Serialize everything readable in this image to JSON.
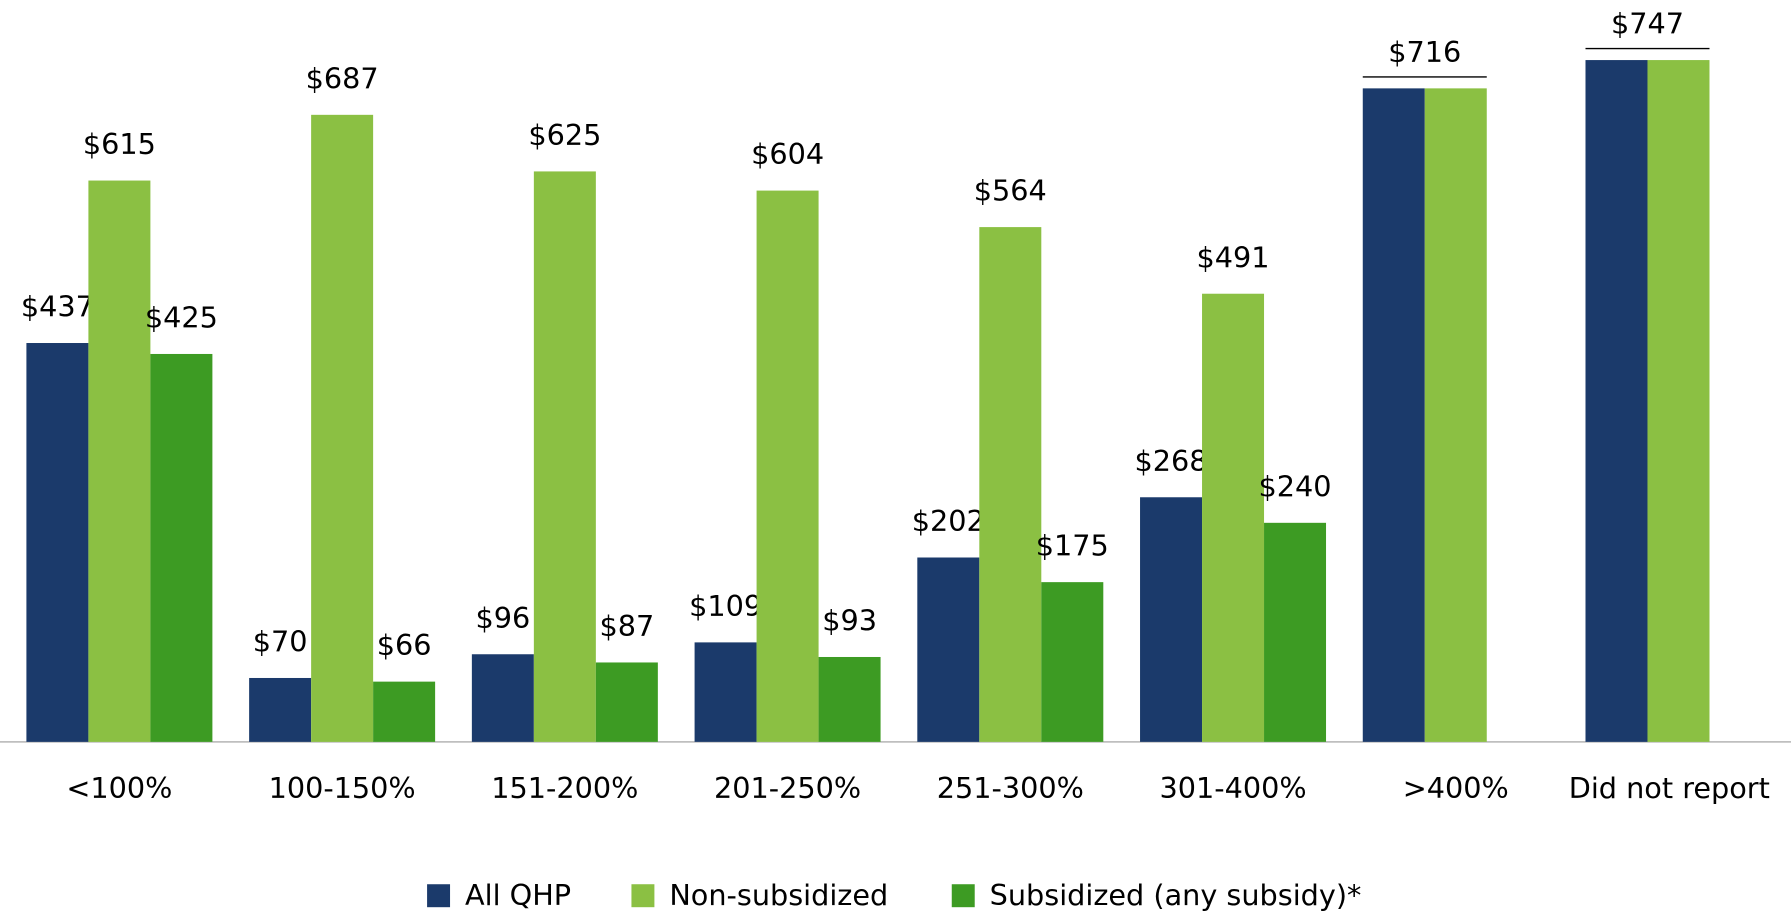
{
  "chart_data": {
    "type": "bar",
    "categories": [
      "<100%",
      "100-150%",
      "151-200%",
      "201-250%",
      "251-300%",
      "301-400%",
      ">400%",
      "Did not report"
    ],
    "series": [
      {
        "name": "All QHP",
        "color": "#1b3a6b",
        "values": [
          437,
          70,
          96,
          109,
          202,
          268,
          716,
          747
        ],
        "value_labels": [
          "$437",
          "$70",
          "$96",
          "$109",
          "$202",
          "$268",
          null,
          null
        ]
      },
      {
        "name": "Non-subsidized",
        "color": "#8bc043",
        "values": [
          615,
          687,
          625,
          604,
          564,
          491,
          716,
          747
        ],
        "value_labels": [
          "$615",
          "$687",
          "$625",
          "$604",
          "$564",
          "$491",
          "$716",
          "$747"
        ]
      },
      {
        "name": "Subsidized (any subsidy)*",
        "color": "#3d9b23",
        "values": [
          425,
          66,
          87,
          93,
          175,
          240,
          null,
          null
        ],
        "value_labels": [
          "$425",
          "$66",
          "$87",
          "$93",
          "$175",
          "$240",
          null,
          null
        ]
      }
    ],
    "ylim": [
      0,
      800
    ],
    "grid": false,
    "legend": "bottom"
  }
}
